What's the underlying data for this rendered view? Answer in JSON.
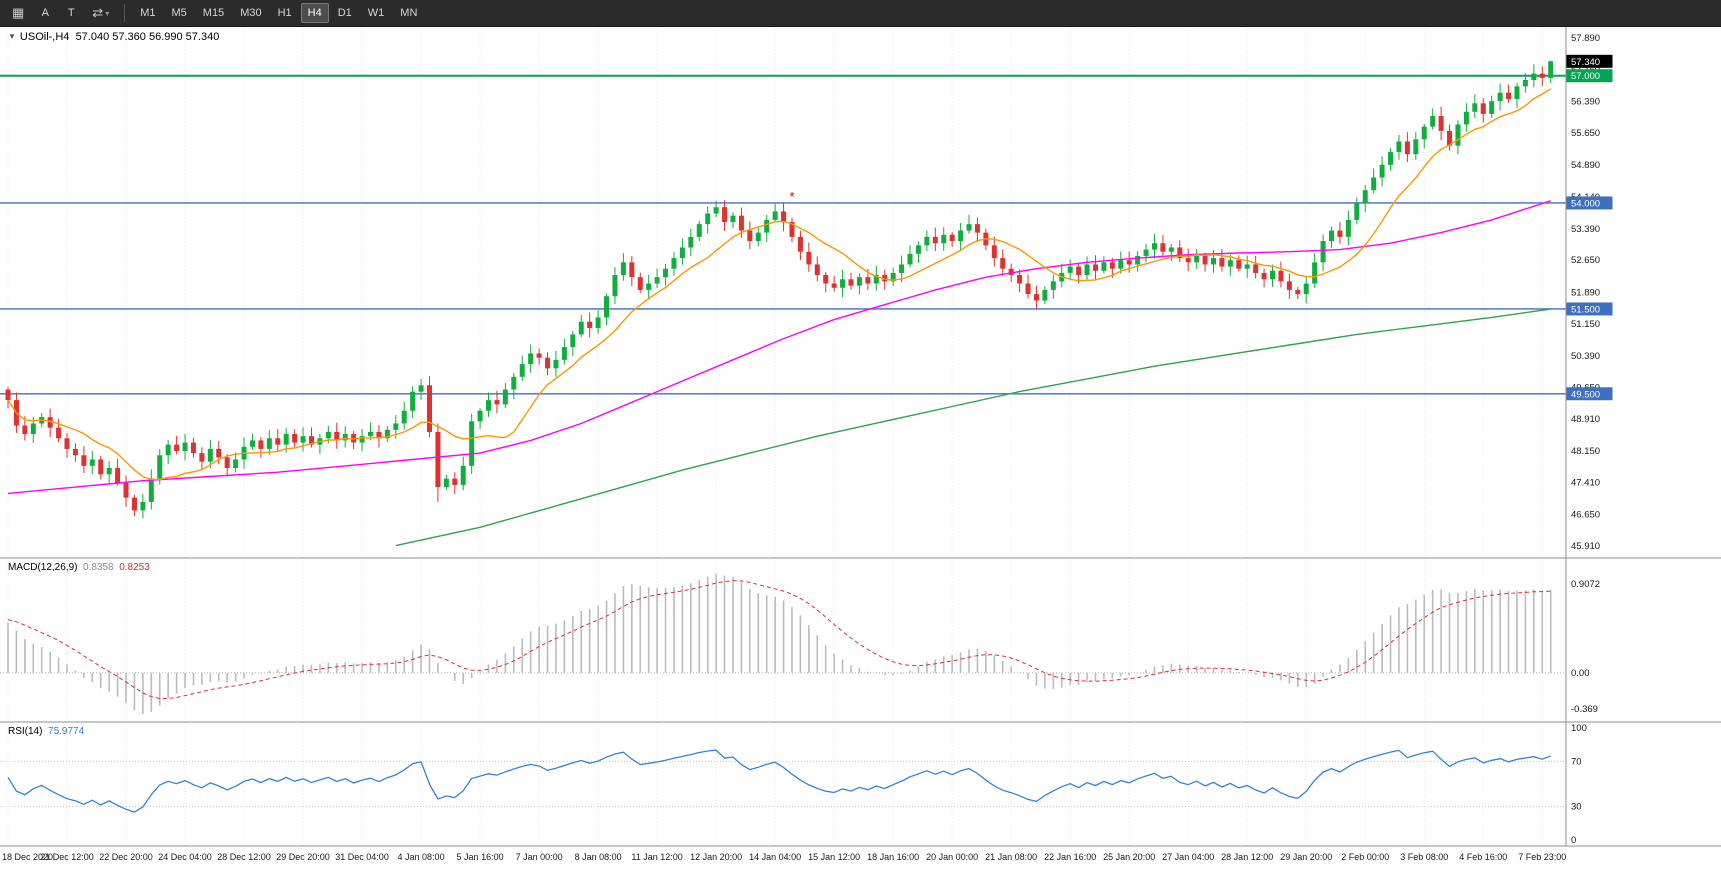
{
  "toolbar": {
    "grid_glyph": "▦",
    "pointer_label": "A",
    "text_label": "T",
    "cycle_glyph": "⇄",
    "caret_glyph": "▾",
    "timeframes": [
      {
        "label": "M1",
        "active": false
      },
      {
        "label": "M5",
        "active": false
      },
      {
        "label": "M15",
        "active": false
      },
      {
        "label": "M30",
        "active": false
      },
      {
        "label": "H1",
        "active": false
      },
      {
        "label": "H4",
        "active": true
      },
      {
        "label": "D1",
        "active": false
      },
      {
        "label": "W1",
        "active": false
      },
      {
        "label": "MN",
        "active": false
      }
    ]
  },
  "main_chart": {
    "collapse_glyph": "▼",
    "symbol_label": "USOil-,H4",
    "ohlc": "57.040 57.360 56.990 57.340",
    "current_price_tag": {
      "text": "57.340",
      "value": 57.34,
      "bg": "#000000"
    },
    "hlines": [
      {
        "price": 57.0,
        "color": "#00a651",
        "width": 2,
        "tag": "57.000"
      },
      {
        "price": 54.0,
        "color": "#3f6fbf",
        "width": 1.4,
        "tag": "54.000"
      },
      {
        "price": 51.5,
        "color": "#3f6fbf",
        "width": 1.4,
        "tag": "51.500"
      },
      {
        "price": 49.5,
        "color": "#3f6fbf",
        "width": 1.4,
        "tag": "49.500"
      }
    ],
    "annotation": {
      "index": 93,
      "price": 54.05,
      "symbol": "*",
      "color": "#d00000"
    },
    "price_axis_labels": [
      "57.890",
      "57.150",
      "56.390",
      "55.650",
      "54.890",
      "54.140",
      "53.390",
      "52.650",
      "51.890",
      "51.150",
      "50.390",
      "49.650",
      "48.910",
      "48.150",
      "47.410",
      "46.650",
      "45.910"
    ]
  },
  "macd_panel": {
    "label": "MACD(12,26,9)",
    "value_main": "0.8358",
    "value_signal": "0.8253",
    "axis_labels": [
      {
        "text": "0.9072",
        "value": 0.9072
      },
      {
        "text": "0.00",
        "value": 0
      },
      {
        "text": "-0.369",
        "value": -0.369
      }
    ]
  },
  "rsi_panel": {
    "label": "RSI(14)",
    "value": "75.9774",
    "levels": [
      70,
      30
    ],
    "axis_labels": [
      {
        "text": "100",
        "value": 100
      },
      {
        "text": "70",
        "value": 70
      },
      {
        "text": "30",
        "value": 30
      },
      {
        "text": "0",
        "value": 0
      }
    ]
  },
  "time_axis": {
    "labels": [
      "18 Dec 2020",
      "21 Dec 12:00",
      "22 Dec 20:00",
      "24 Dec 04:00",
      "28 Dec 12:00",
      "29 Dec 20:00",
      "31 Dec 04:00",
      "4 Jan 08:00",
      "5 Jan 16:00",
      "7 Jan 00:00",
      "8 Jan 08:00",
      "11 Jan 12:00",
      "12 Jan 20:00",
      "14 Jan 04:00",
      "15 Jan 12:00",
      "18 Jan 16:00",
      "20 Jan 00:00",
      "21 Jan 08:00",
      "22 Jan 16:00",
      "25 Jan 20:00",
      "27 Jan 04:00",
      "28 Jan 12:00",
      "29 Jan 20:00",
      "2 Feb 00:00",
      "3 Feb 08:00",
      "4 Feb 16:00",
      "7 Feb 23:00"
    ]
  },
  "colors": {
    "up": "#0fae3d",
    "down": "#e03030",
    "ma_fast": "#ff9800",
    "ma_mid": "#ff00ff",
    "ma_slow": "#2da44e",
    "macd_hist": "#bbbbbb",
    "macd_signal": "#e03030",
    "rsi_line": "#2f86d6",
    "grid": "#e6e6e6",
    "separator": "#8c8c8c",
    "axis_text": "#1a1a1a",
    "tag_blue": "#3f6fbf",
    "tag_green": "#00a651"
  },
  "chart_data": {
    "type": "candlestick",
    "symbol": "USOil",
    "timeframe": "H4",
    "price_range": [
      45.91,
      57.89
    ],
    "open_first": 49.6,
    "closes": [
      49.35,
      48.75,
      48.55,
      48.8,
      48.95,
      48.7,
      48.45,
      48.2,
      48.05,
      47.8,
      47.95,
      47.6,
      47.75,
      47.4,
      47.05,
      46.75,
      46.95,
      47.5,
      48.05,
      48.3,
      48.15,
      48.35,
      48.1,
      47.9,
      48.2,
      48.0,
      47.75,
      47.95,
      48.25,
      48.4,
      48.2,
      48.45,
      48.3,
      48.55,
      48.35,
      48.5,
      48.3,
      48.45,
      48.6,
      48.4,
      48.55,
      48.35,
      48.5,
      48.6,
      48.45,
      48.65,
      48.8,
      49.1,
      49.55,
      49.7,
      48.6,
      47.3,
      47.5,
      47.35,
      47.8,
      48.85,
      49.1,
      49.35,
      49.25,
      49.6,
      49.9,
      50.2,
      50.45,
      50.35,
      50.1,
      50.3,
      50.6,
      50.9,
      51.2,
      51.05,
      51.3,
      51.8,
      52.3,
      52.6,
      52.25,
      51.95,
      52.1,
      52.25,
      52.45,
      52.7,
      52.95,
      53.2,
      53.5,
      53.75,
      53.9,
      53.55,
      53.7,
      53.35,
      53.1,
      53.3,
      53.6,
      53.8,
      53.55,
      53.2,
      52.85,
      52.55,
      52.3,
      52.1,
      52.0,
      52.2,
      52.05,
      52.25,
      52.1,
      52.3,
      52.15,
      52.35,
      52.55,
      52.8,
      53.0,
      53.2,
      53.05,
      53.25,
      53.1,
      53.35,
      53.5,
      53.3,
      53.0,
      52.7,
      52.45,
      52.3,
      52.1,
      51.85,
      51.7,
      51.95,
      52.15,
      52.35,
      52.5,
      52.3,
      52.55,
      52.4,
      52.6,
      52.45,
      52.65,
      52.55,
      52.75,
      52.9,
      53.05,
      52.85,
      52.95,
      52.7,
      52.6,
      52.75,
      52.55,
      52.7,
      52.5,
      52.65,
      52.45,
      52.55,
      52.35,
      52.2,
      52.4,
      52.15,
      51.95,
      51.85,
      52.1,
      52.6,
      53.1,
      53.35,
      53.2,
      53.6,
      54.0,
      54.3,
      54.6,
      54.9,
      55.2,
      55.45,
      55.15,
      55.5,
      55.8,
      56.05,
      55.7,
      55.35,
      55.85,
      56.15,
      56.35,
      56.1,
      56.4,
      56.6,
      56.45,
      56.75,
      56.9,
      57.05,
      56.95,
      57.34
    ],
    "wick_overrides": {
      "15": {
        "low": 46.62
      },
      "49": {
        "high": 49.85
      },
      "51": {
        "low": 46.95
      },
      "84": {
        "high": 54.05
      },
      "153": {
        "low": 51.73
      },
      "183": {
        "high": 57.36
      }
    },
    "overlays": {
      "sma_fast_period": 10,
      "magenta_anchors": [
        [
          0,
          47.15
        ],
        [
          8,
          47.3
        ],
        [
          16,
          47.45
        ],
        [
          24,
          47.55
        ],
        [
          32,
          47.65
        ],
        [
          40,
          47.8
        ],
        [
          48,
          47.95
        ],
        [
          56,
          48.1
        ],
        [
          62,
          48.4
        ],
        [
          68,
          48.8
        ],
        [
          74,
          49.3
        ],
        [
          80,
          49.8
        ],
        [
          86,
          50.3
        ],
        [
          92,
          50.8
        ],
        [
          98,
          51.25
        ],
        [
          104,
          51.6
        ],
        [
          110,
          51.95
        ],
        [
          116,
          52.25
        ],
        [
          122,
          52.45
        ],
        [
          128,
          52.6
        ],
        [
          134,
          52.7
        ],
        [
          140,
          52.78
        ],
        [
          146,
          52.82
        ],
        [
          152,
          52.85
        ],
        [
          158,
          52.9
        ],
        [
          164,
          53.05
        ],
        [
          170,
          53.3
        ],
        [
          176,
          53.6
        ],
        [
          183,
          54.05
        ]
      ],
      "green_anchors": [
        [
          46,
          45.92
        ],
        [
          56,
          46.35
        ],
        [
          64,
          46.8
        ],
        [
          72,
          47.25
        ],
        [
          80,
          47.7
        ],
        [
          88,
          48.1
        ],
        [
          96,
          48.5
        ],
        [
          104,
          48.85
        ],
        [
          112,
          49.2
        ],
        [
          120,
          49.55
        ],
        [
          128,
          49.85
        ],
        [
          136,
          50.15
        ],
        [
          144,
          50.4
        ],
        [
          152,
          50.65
        ],
        [
          160,
          50.9
        ],
        [
          168,
          51.1
        ],
        [
          176,
          51.3
        ],
        [
          183,
          51.5
        ]
      ]
    },
    "indicators": {
      "macd": {
        "fast": 12,
        "slow": 26,
        "signal": 9
      },
      "rsi": {
        "period": 14
      }
    },
    "x_tick_step": 7
  }
}
